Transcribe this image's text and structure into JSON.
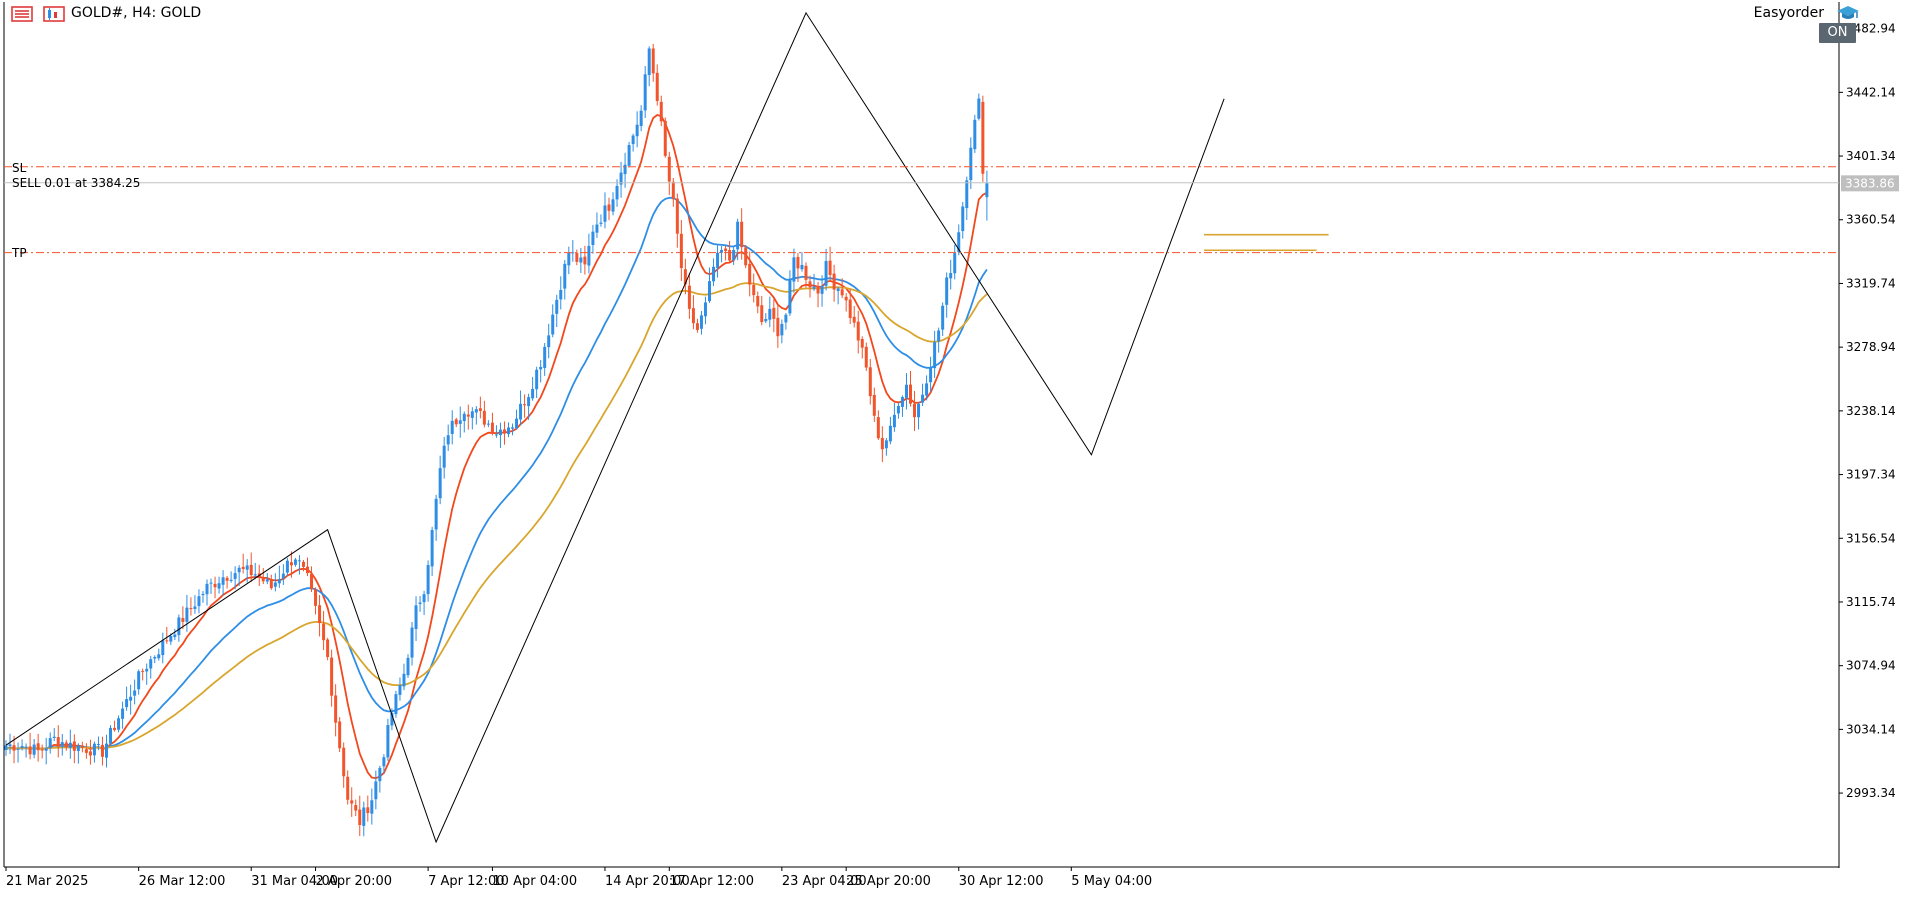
{
  "header": {
    "symbol_timeframe": "GOLD#, H4:  GOLD",
    "ea_name": "Easyorder",
    "ea_status": "ON",
    "menu_icon": "menu-grid-icon",
    "chart_icon": "chart-properties-icon",
    "ea_icon": "graduation-hat-icon"
  },
  "trade_lines": {
    "sl_label": "SL",
    "sell_label": "SELL 0.01 at 3384.25",
    "tp_label": "TP",
    "sl_price": 3394.5,
    "sell_price": 3384.25,
    "tp_price": 3339.5
  },
  "colors": {
    "bull": "#2e8ee6",
    "bear": "#f2552c",
    "ma_fast": "#f2481c",
    "ma_mid": "#2e8ee6",
    "ma_slow": "#d8a62e",
    "trade_line": "#f2552c",
    "price_line": "#c0c0c0",
    "price_tag_bg": "#bfbfbf",
    "grid_text": "#000000"
  },
  "chart_data": {
    "type": "candlestick",
    "timeframe": "H4",
    "current_price": 3383.86,
    "current_price_label": "3383.86",
    "ylim": [
      2946,
      3500
    ],
    "y_ticks": [
      "3482.94",
      "3442.14",
      "3401.34",
      "3360.54",
      "3319.74",
      "3278.94",
      "3238.14",
      "3197.34",
      "3156.54",
      "3115.74",
      "3074.94",
      "3034.14",
      "2993.34"
    ],
    "x_ticks": [
      {
        "label": "21 Mar 2025",
        "bar": 0
      },
      {
        "label": "26 Mar 12:00",
        "bar": 33
      },
      {
        "label": "31 Mar 04:00",
        "bar": 61
      },
      {
        "label": "2 Apr 20:00",
        "bar": 77
      },
      {
        "label": "7 Apr 12:00",
        "bar": 105
      },
      {
        "label": "10 Apr 04:00",
        "bar": 121
      },
      {
        "label": "14 Apr 20:00",
        "bar": 149
      },
      {
        "label": "17 Apr 12:00",
        "bar": 165
      },
      {
        "label": "23 Apr 04:00",
        "bar": 193
      },
      {
        "label": "25 Apr 20:00",
        "bar": 209
      },
      {
        "label": "30 Apr 12:00",
        "bar": 237
      },
      {
        "label": "5 May 04:00",
        "bar": 265
      }
    ],
    "anchors": [
      [
        0,
        3024
      ],
      [
        4,
        3024
      ],
      [
        8,
        3020
      ],
      [
        12,
        3028
      ],
      [
        16,
        3024
      ],
      [
        20,
        3022
      ],
      [
        24,
        3020
      ],
      [
        28,
        3042
      ],
      [
        34,
        3072
      ],
      [
        40,
        3092
      ],
      [
        46,
        3112
      ],
      [
        50,
        3125
      ],
      [
        54,
        3132
      ],
      [
        58,
        3136
      ],
      [
        62,
        3134
      ],
      [
        66,
        3125
      ],
      [
        70,
        3140
      ],
      [
        72,
        3145
      ],
      [
        75,
        3130
      ],
      [
        78,
        3100
      ],
      [
        80,
        3080
      ],
      [
        82,
        3040
      ],
      [
        85,
        2990
      ],
      [
        88,
        2975
      ],
      [
        91,
        2990
      ],
      [
        94,
        3020
      ],
      [
        96,
        3045
      ],
      [
        99,
        3070
      ],
      [
        102,
        3110
      ],
      [
        104,
        3125
      ],
      [
        106,
        3160
      ],
      [
        108,
        3200
      ],
      [
        110,
        3225
      ],
      [
        114,
        3240
      ],
      [
        118,
        3235
      ],
      [
        122,
        3225
      ],
      [
        126,
        3230
      ],
      [
        130,
        3250
      ],
      [
        133,
        3270
      ],
      [
        136,
        3300
      ],
      [
        140,
        3340
      ],
      [
        144,
        3330
      ],
      [
        146,
        3355
      ],
      [
        150,
        3370
      ],
      [
        154,
        3400
      ],
      [
        158,
        3430
      ],
      [
        160,
        3470
      ],
      [
        162,
        3440
      ],
      [
        164,
        3400
      ],
      [
        166,
        3370
      ],
      [
        168,
        3330
      ],
      [
        170,
        3300
      ],
      [
        172,
        3290
      ],
      [
        174,
        3305
      ],
      [
        176,
        3330
      ],
      [
        178,
        3340
      ],
      [
        180,
        3335
      ],
      [
        182,
        3355
      ],
      [
        184,
        3330
      ],
      [
        186,
        3310
      ],
      [
        188,
        3295
      ],
      [
        190,
        3300
      ],
      [
        192,
        3290
      ],
      [
        194,
        3300
      ],
      [
        196,
        3335
      ],
      [
        198,
        3330
      ],
      [
        200,
        3320
      ],
      [
        202,
        3315
      ],
      [
        204,
        3330
      ],
      [
        206,
        3320
      ],
      [
        208,
        3315
      ],
      [
        210,
        3300
      ],
      [
        212,
        3285
      ],
      [
        214,
        3265
      ],
      [
        216,
        3232
      ],
      [
        218,
        3215
      ],
      [
        220,
        3225
      ],
      [
        222,
        3245
      ],
      [
        224,
        3255
      ],
      [
        226,
        3235
      ],
      [
        228,
        3250
      ],
      [
        230,
        3270
      ],
      [
        232,
        3290
      ],
      [
        234,
        3320
      ],
      [
        236,
        3340
      ],
      [
        238,
        3370
      ],
      [
        240,
        3410
      ],
      [
        242,
        3435
      ],
      [
        243,
        3390
      ],
      [
        244,
        3384
      ]
    ],
    "zigzag": [
      [
        0,
        3024
      ],
      [
        80,
        3162
      ],
      [
        107,
        2962
      ],
      [
        199,
        3493
      ],
      [
        270,
        3210
      ],
      [
        303,
        3438
      ]
    ],
    "horizontal_levels": [
      {
        "price": 3351,
        "from_bar": 298,
        "to_bar": 329,
        "color": "#d8a62e"
      },
      {
        "price": 3341,
        "from_bar": 298,
        "to_bar": 326,
        "color": "#d8a62e"
      }
    ],
    "moving_averages": [
      {
        "period": 10,
        "color": "#f2481c"
      },
      {
        "period": 30,
        "color": "#2e8ee6"
      },
      {
        "period": 60,
        "color": "#d8a62e"
      }
    ]
  }
}
